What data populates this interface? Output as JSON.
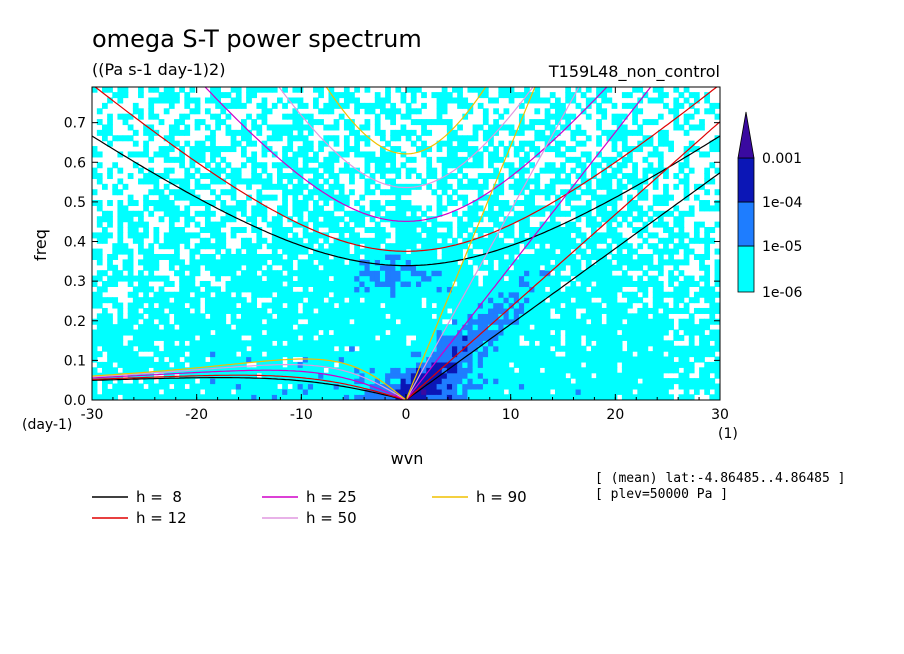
{
  "chart_data": {
    "type": "heatmap",
    "title": "omega S-T power spectrum",
    "subtitle": "((Pa s-1 day-1)2)",
    "experiment": "T159L48_non_control",
    "xlabel": "wvn",
    "xunit": "(1)",
    "ylabel": "freq",
    "yunit": "(day-1)",
    "xlim": [
      -30,
      30
    ],
    "ylim": [
      0,
      0.79
    ],
    "xticks": [
      -30,
      -20,
      -10,
      0,
      10,
      20,
      30
    ],
    "xtick_labels": [
      "-30",
      "-20",
      "-10",
      "0",
      "10",
      "20",
      "30"
    ],
    "yticks": [
      0,
      0.1,
      0.2,
      0.3,
      0.4,
      0.5,
      0.6,
      0.7
    ],
    "ytick_labels": [
      "0.0",
      "0.1",
      "0.2",
      "0.3",
      "0.4",
      "0.5",
      "0.6",
      "0.7"
    ],
    "colorbar": {
      "levels": [
        1e-06,
        1e-05,
        0.0001,
        0.001
      ],
      "labels": [
        "1e-06",
        "1e-05",
        "1e-04",
        "0.001"
      ],
      "colors": [
        "#00ffff",
        "#1e7dff",
        "#0b16b6",
        "#3a0aa0"
      ]
    },
    "dispersion_curves": [
      {
        "name": "h =  8",
        "h": 8,
        "color": "#000000"
      },
      {
        "name": "h = 12",
        "h": 12,
        "color": "#e00000"
      },
      {
        "name": "h = 25",
        "h": 25,
        "color": "#d000c8"
      },
      {
        "name": "h = 50",
        "h": 50,
        "color": "#e098e0"
      },
      {
        "name": "h = 90",
        "h": 90,
        "color": "#f0c000"
      }
    ],
    "notes": [
      "[ (mean) lat:-4.86485..4.86485 ]",
      "[ plev=50000 Pa ]"
    ]
  }
}
